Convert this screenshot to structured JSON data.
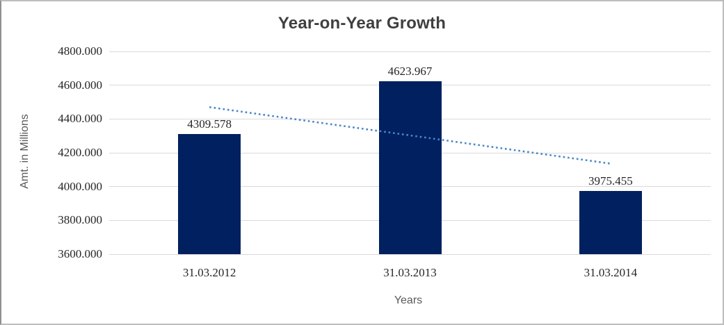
{
  "frame": {
    "background": "#ffffff",
    "border_color": "#bdbdbd"
  },
  "chart_data": {
    "type": "bar",
    "title": "Year-on-Year Growth",
    "xlabel": "Years",
    "ylabel": "Amt. in Millions",
    "categories": [
      "31.03.2012",
      "31.03.2013",
      "31.03.2014"
    ],
    "values": [
      4309.578,
      4623.967,
      3975.455
    ],
    "data_labels": [
      "4309.578",
      "4623.967",
      "3975.455"
    ],
    "ylim": [
      3600,
      4800
    ],
    "ytick_step": 200,
    "yticks": [
      "3600.000",
      "3800.000",
      "4000.000",
      "4200.000",
      "4400.000",
      "4600.000",
      "4800.000"
    ],
    "grid": true,
    "legend": "none",
    "bar_color": "#002060",
    "gridline_color": "#d9d9d9",
    "axis_line_color": "#d9d9d9",
    "title_color": "#3f3f3f",
    "tick_label_color": "#262626",
    "axis_title_color": "#595959",
    "trendline": {
      "type": "linear",
      "style": "dotted",
      "color": "#4a86c8"
    }
  }
}
